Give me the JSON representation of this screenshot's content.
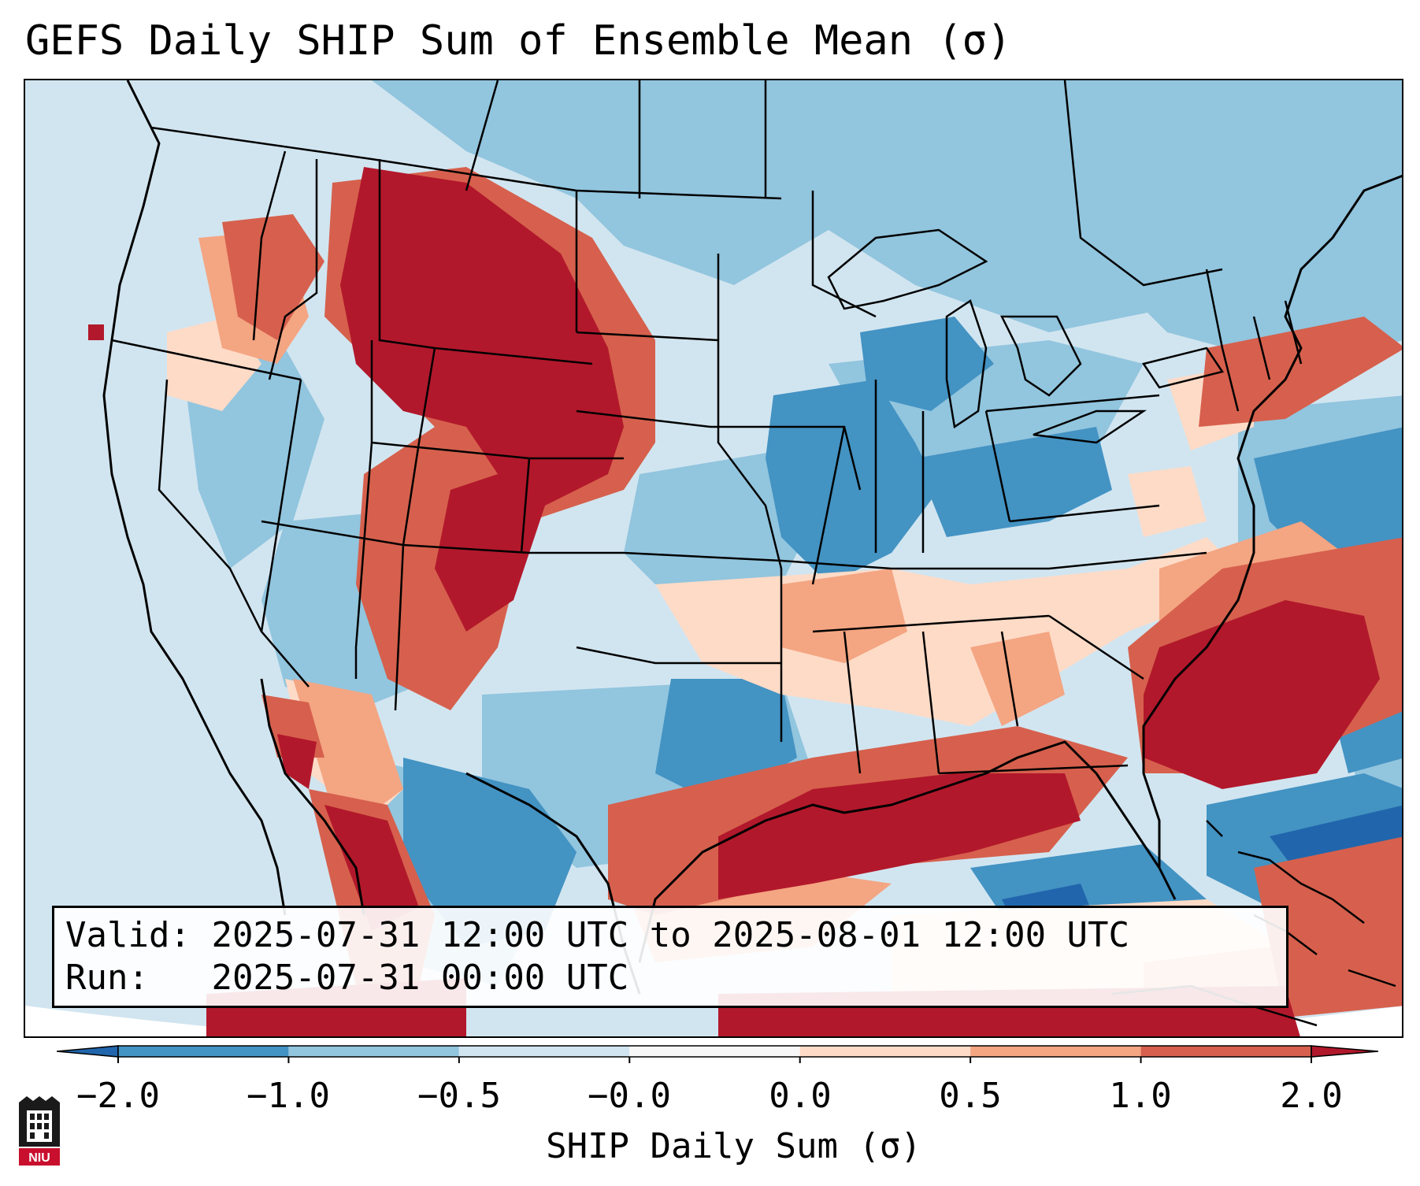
{
  "title": "GEFS Daily SHIP Sum of Ensemble Mean (σ)",
  "info": {
    "valid_label": "Valid:",
    "valid_value": "2025-07-31 12:00 UTC to 2025-08-01 12:00 UTC",
    "run_label": "Run:",
    "run_value": "2025-07-31 00:00 UTC"
  },
  "colorbar": {
    "label": "SHIP Daily Sum (σ)",
    "tick_labels": [
      "−2.0",
      "−1.0",
      "−0.5",
      "−0.0",
      "0.0",
      "0.5",
      "1.0",
      "2.0"
    ],
    "bins": [
      {
        "range": "< -2.0",
        "color": "#2166ac"
      },
      {
        "range": "-2.0 to -1.0",
        "color": "#4393c3"
      },
      {
        "range": "-1.0 to -0.5",
        "color": "#92c5de"
      },
      {
        "range": "-0.5 to -0.0",
        "color": "#d1e5f0"
      },
      {
        "range": "-0.0 to 0.0",
        "color": "#f7f7f7"
      },
      {
        "range": "0.0 to 0.5",
        "color": "#fddbc7"
      },
      {
        "range": "0.5 to 1.0",
        "color": "#f4a582"
      },
      {
        "range": "1.0 to 2.0",
        "color": "#d6604d"
      },
      {
        "range": "> 2.0",
        "color": "#b2182b"
      }
    ]
  },
  "logo": {
    "text": "NIU"
  }
}
